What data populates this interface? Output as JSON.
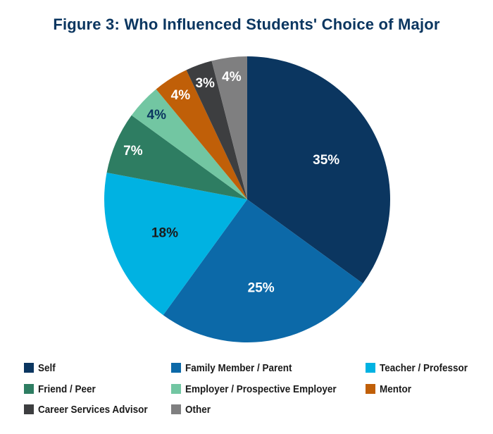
{
  "chart_data": {
    "type": "pie",
    "title": "Figure 3: Who Influenced Students' Choice of Major",
    "start": "12 o'clock, clockwise",
    "slices": [
      {
        "name": "Self",
        "value": 35,
        "label": "35%",
        "color": "#0b3660",
        "label_color": "#ffffff"
      },
      {
        "name": "Family Member / Parent",
        "value": 25,
        "label": "25%",
        "color": "#0c69a8",
        "label_color": "#ffffff"
      },
      {
        "name": "Teacher / Professor",
        "value": 18,
        "label": "18%",
        "color": "#00b2e2",
        "label_color": "#1a1a1a"
      },
      {
        "name": "Friend / Peer",
        "value": 7,
        "label": "7%",
        "color": "#2e7d62",
        "label_color": "#ffffff"
      },
      {
        "name": "Employer / Prospective Employer",
        "value": 4,
        "label": "4%",
        "color": "#72c6a2",
        "label_color": "#0b3660"
      },
      {
        "name": "Mentor",
        "value": 4,
        "label": "4%",
        "color": "#c05f08",
        "label_color": "#ffffff"
      },
      {
        "name": "Career Services Advisor",
        "value": 3,
        "label": "3%",
        "color": "#3d3e40",
        "label_color": "#ffffff"
      },
      {
        "name": "Other",
        "value": 4,
        "label": "4%",
        "color": "#7f7f80",
        "label_color": "#ffffff"
      }
    ],
    "legend_position": "bottom"
  }
}
